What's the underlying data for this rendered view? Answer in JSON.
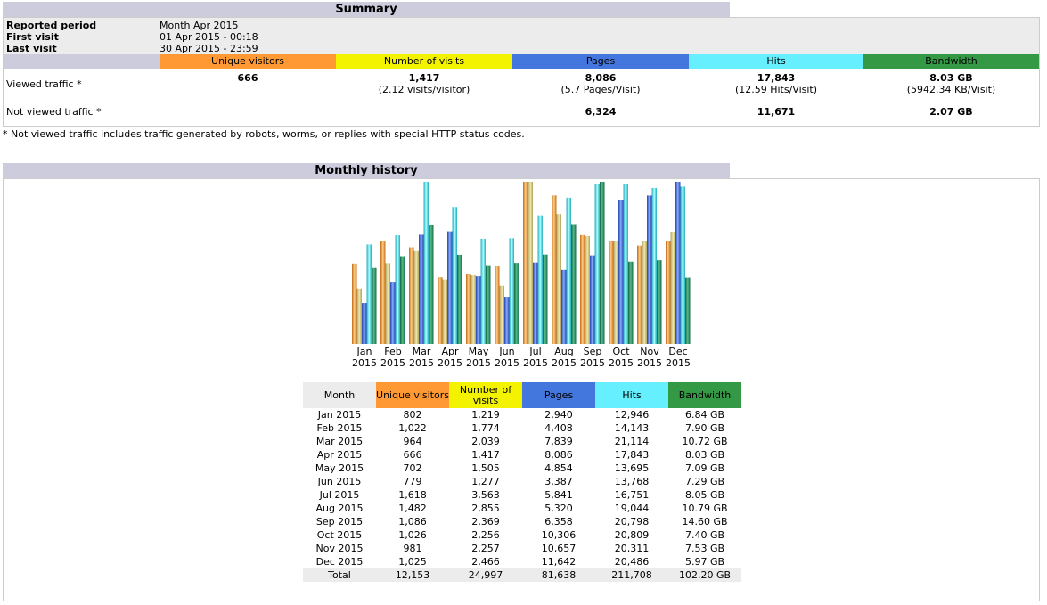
{
  "summary": {
    "title": "Summary",
    "reported_period_label": "Reported period",
    "reported_period_value": "Month Apr 2015",
    "first_visit_label": "First visit",
    "first_visit_value": "01 Apr 2015 - 00:18",
    "last_visit_label": "Last visit",
    "last_visit_value": "30 Apr 2015 - 23:59",
    "headers": {
      "unique_visitors": "Unique visitors",
      "number_of_visits": "Number of visits",
      "pages": "Pages",
      "hits": "Hits",
      "bandwidth": "Bandwidth"
    },
    "viewed": {
      "label": "Viewed traffic *",
      "unique_visitors": "666",
      "visits": "1,417",
      "visits_sub": "(2.12 visits/visitor)",
      "pages": "8,086",
      "pages_sub": "(5.7 Pages/Visit)",
      "hits": "17,843",
      "hits_sub": "(12.59 Hits/Visit)",
      "bandwidth": "8.03 GB",
      "bandwidth_sub": "(5942.34 KB/Visit)"
    },
    "not_viewed": {
      "label": "Not viewed traffic *",
      "pages": "6,324",
      "hits": "11,671",
      "bandwidth": "2.07 GB"
    },
    "note": "* Not viewed traffic includes traffic generated by robots, worms, or replies with special HTTP status codes."
  },
  "monthly": {
    "title": "Monthly history",
    "headers": {
      "month": "Month",
      "unique_visitors": "Unique visitors",
      "number_of_visits": "Number of visits",
      "pages": "Pages",
      "hits": "Hits",
      "bandwidth": "Bandwidth"
    },
    "rows": [
      {
        "month": "Jan 2015",
        "uv": "802",
        "visits": "1,219",
        "pages": "2,940",
        "hits": "12,946",
        "bw": "6.84 GB"
      },
      {
        "month": "Feb 2015",
        "uv": "1,022",
        "visits": "1,774",
        "pages": "4,408",
        "hits": "14,143",
        "bw": "7.90 GB"
      },
      {
        "month": "Mar 2015",
        "uv": "964",
        "visits": "2,039",
        "pages": "7,839",
        "hits": "21,114",
        "bw": "10.72 GB"
      },
      {
        "month": "Apr 2015",
        "uv": "666",
        "visits": "1,417",
        "pages": "8,086",
        "hits": "17,843",
        "bw": "8.03 GB"
      },
      {
        "month": "May 2015",
        "uv": "702",
        "visits": "1,505",
        "pages": "4,854",
        "hits": "13,695",
        "bw": "7.09 GB"
      },
      {
        "month": "Jun 2015",
        "uv": "779",
        "visits": "1,277",
        "pages": "3,387",
        "hits": "13,768",
        "bw": "7.29 GB"
      },
      {
        "month": "Jul 2015",
        "uv": "1,618",
        "visits": "3,563",
        "pages": "5,841",
        "hits": "16,751",
        "bw": "8.05 GB"
      },
      {
        "month": "Aug 2015",
        "uv": "1,482",
        "visits": "2,855",
        "pages": "5,320",
        "hits": "19,044",
        "bw": "10.79 GB"
      },
      {
        "month": "Sep 2015",
        "uv": "1,086",
        "visits": "2,369",
        "pages": "6,358",
        "hits": "20,798",
        "bw": "14.60 GB"
      },
      {
        "month": "Oct 2015",
        "uv": "1,026",
        "visits": "2,256",
        "pages": "10,306",
        "hits": "20,809",
        "bw": "7.40 GB"
      },
      {
        "month": "Nov 2015",
        "uv": "981",
        "visits": "2,257",
        "pages": "10,657",
        "hits": "20,311",
        "bw": "7.53 GB"
      },
      {
        "month": "Dec 2015",
        "uv": "1,025",
        "visits": "2,466",
        "pages": "11,642",
        "hits": "20,486",
        "bw": "5.97 GB"
      }
    ],
    "total": {
      "month": "Total",
      "uv": "12,153",
      "visits": "24,997",
      "pages": "81,638",
      "hits": "211,708",
      "bw": "102.20 GB"
    }
  },
  "colors": {
    "unique_visitors": "#ff9933",
    "number_of_visits": "#f3f300",
    "pages": "#4477dd",
    "hits": "#66f0ff",
    "bandwidth": "#339944",
    "title_bar": "#ccccdd",
    "month_header": "#ececec"
  },
  "chart_data": {
    "type": "bar",
    "categories": [
      "Jan 2015",
      "Feb 2015",
      "Mar 2015",
      "Apr 2015",
      "May 2015",
      "Jun 2015",
      "Jul 2015",
      "Aug 2015",
      "Sep 2015",
      "Oct 2015",
      "Nov 2015",
      "Dec 2015"
    ],
    "category_labels": [
      {
        "m": "Jan",
        "y": "2015"
      },
      {
        "m": "Feb",
        "y": "2015"
      },
      {
        "m": "Mar",
        "y": "2015"
      },
      {
        "m": "Apr",
        "y": "2015"
      },
      {
        "m": "May",
        "y": "2015"
      },
      {
        "m": "Jun",
        "y": "2015"
      },
      {
        "m": "Jul",
        "y": "2015"
      },
      {
        "m": "Aug",
        "y": "2015"
      },
      {
        "m": "Sep",
        "y": "2015"
      },
      {
        "m": "Oct",
        "y": "2015"
      },
      {
        "m": "Nov",
        "y": "2015"
      },
      {
        "m": "Dec",
        "y": "2015"
      }
    ],
    "series": [
      {
        "key": "uv",
        "color": "#ff9933",
        "values": [
          802,
          1022,
          964,
          666,
          702,
          779,
          1618,
          1482,
          1086,
          1026,
          981,
          1025
        ]
      },
      {
        "key": "visits",
        "color": "#f3f300",
        "values": [
          1219,
          1774,
          2039,
          1417,
          1505,
          1277,
          3563,
          2855,
          2369,
          2256,
          2257,
          2466
        ]
      },
      {
        "key": "pages",
        "color": "#4477dd",
        "values": [
          2940,
          4408,
          7839,
          8086,
          4854,
          3387,
          5841,
          5320,
          6358,
          10306,
          10657,
          11642
        ]
      },
      {
        "key": "hits",
        "color": "#66f0ff",
        "values": [
          12946,
          14143,
          21114,
          17843,
          13695,
          13768,
          16751,
          19044,
          20798,
          20809,
          20311,
          20486
        ]
      },
      {
        "key": "bw",
        "color": "#339944",
        "values": [
          6.84,
          7.9,
          10.72,
          8.03,
          7.09,
          7.29,
          8.05,
          10.79,
          14.6,
          7.4,
          7.53,
          5.97
        ]
      }
    ]
  }
}
